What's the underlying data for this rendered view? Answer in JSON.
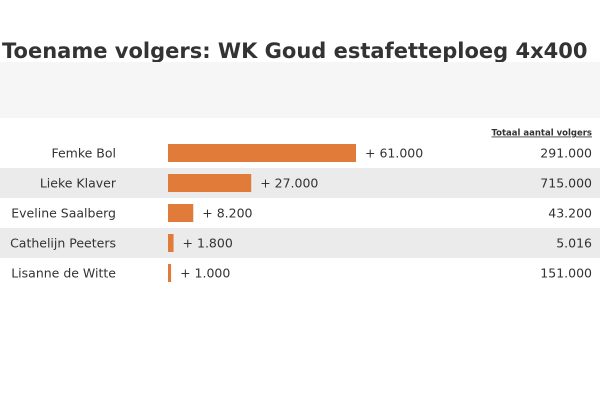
{
  "chart_data": {
    "type": "bar",
    "title": "Toename volgers: WK Goud estafetteploeg 4x400",
    "categories": [
      "Femke Bol",
      "Lieke Klaver",
      "Eveline Saalberg",
      "Cathelijn Peeters",
      "Lisanne de Witte"
    ],
    "values": [
      61000,
      27000,
      8200,
      1800,
      1000
    ],
    "value_labels": [
      "+ 61.000",
      "+ 27.000",
      "+ 8.200",
      "+ 1.800",
      "+ 1.000"
    ],
    "color": "#e07b39",
    "totals": {
      "header": "Totaal aantal volgers",
      "values": [
        291000,
        715000,
        43200,
        5016,
        151000
      ],
      "value_labels": [
        "291.000",
        "715.000",
        "43.200",
        "5.016",
        "151.000"
      ]
    }
  }
}
